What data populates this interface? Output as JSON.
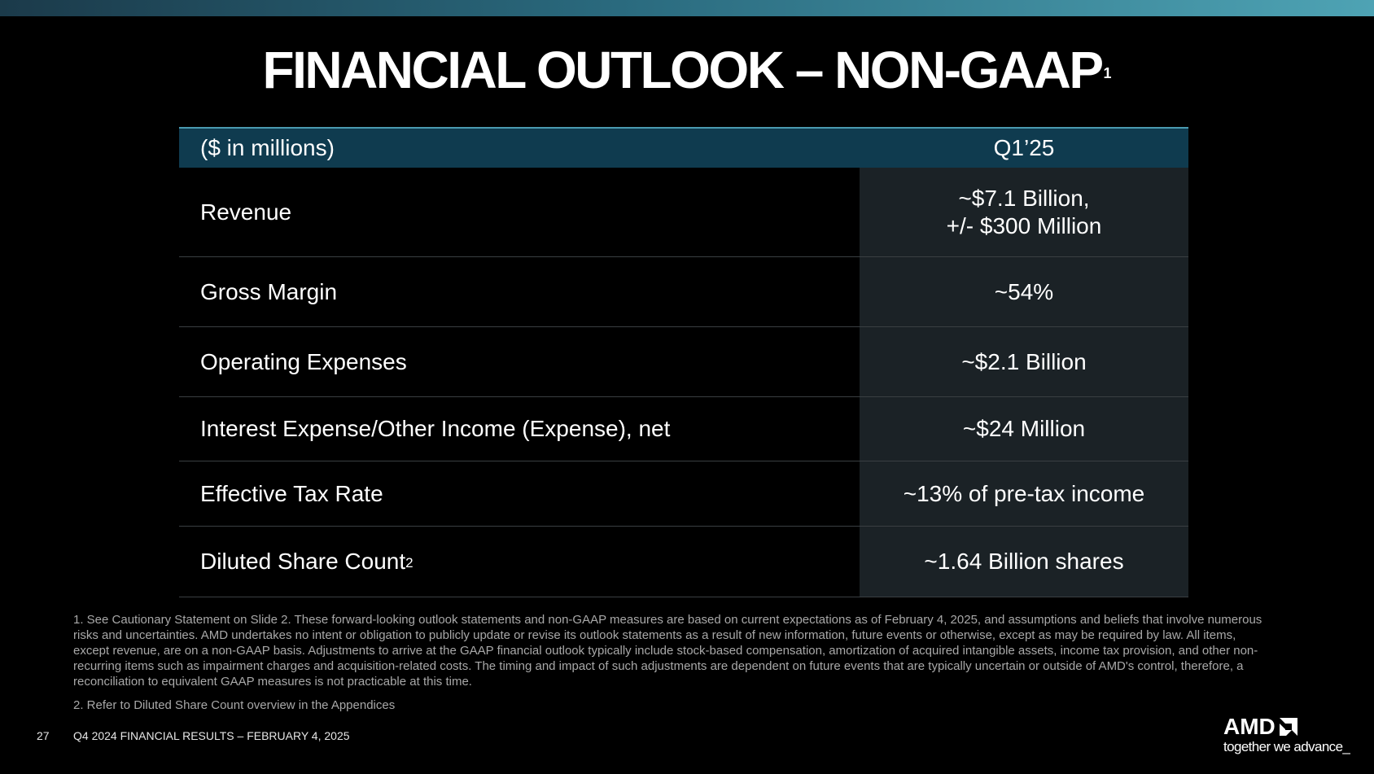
{
  "title": {
    "text": "FINANCIAL OUTLOOK – NON-GAAP",
    "footnote_marker": "1"
  },
  "table": {
    "header": {
      "label": "($ in millions)",
      "period": "Q1’25"
    },
    "rows": [
      {
        "label": "Revenue",
        "label_sup": "",
        "value_line1": "~$7.1 Billion,",
        "value_line2": "+/- $300 Million"
      },
      {
        "label": "Gross Margin",
        "label_sup": "",
        "value_line1": "~54%",
        "value_line2": ""
      },
      {
        "label": "Operating Expenses",
        "label_sup": "",
        "value_line1": "~$2.1 Billion",
        "value_line2": ""
      },
      {
        "label": "Interest Expense/Other Income (Expense), net",
        "label_sup": "",
        "value_line1": "~$24 Million",
        "value_line2": ""
      },
      {
        "label": "Effective Tax Rate",
        "label_sup": "",
        "value_line1": "~13% of pre-tax income",
        "value_line2": ""
      },
      {
        "label": "Diluted Share Count",
        "label_sup": "2",
        "value_line1": "~1.64 Billion shares",
        "value_line2": ""
      }
    ]
  },
  "footnotes": [
    "1.  See Cautionary Statement on Slide 2. These forward-looking outlook statements and non-GAAP measures are based on current expectations as of February 4, 2025, and assumptions and beliefs that involve numerous risks and uncertainties. AMD undertakes no intent or obligation to publicly update or revise its outlook statements as a result of new information, future events or otherwise, except as may be required by law. All items, except revenue, are on a non-GAAP basis. Adjustments to arrive at the GAAP financial outlook typically include stock-based compensation, amortization of acquired intangible assets, income tax provision, and other non-recurring items such as impairment charges and acquisition-related costs. The timing and impact of such adjustments are dependent on future events that are typically uncertain or outside of AMD's control, therefore, a reconciliation to equivalent GAAP measures is not practicable at this time.",
    "2.  Refer to Diluted Share Count overview in the Appendices"
  ],
  "footer": {
    "page_number": "27",
    "text": "Q4 2024 FINANCIAL RESULTS – FEBRUARY 4, 2025"
  },
  "logo": {
    "brand": "AMD",
    "icon": "amd-arrow-icon",
    "tagline": "together we advance_"
  },
  "colors": {
    "background": "#000000",
    "header_bar": "#0f3b4f",
    "value_column": "#1b2226",
    "accent": "#4ea3b4"
  }
}
